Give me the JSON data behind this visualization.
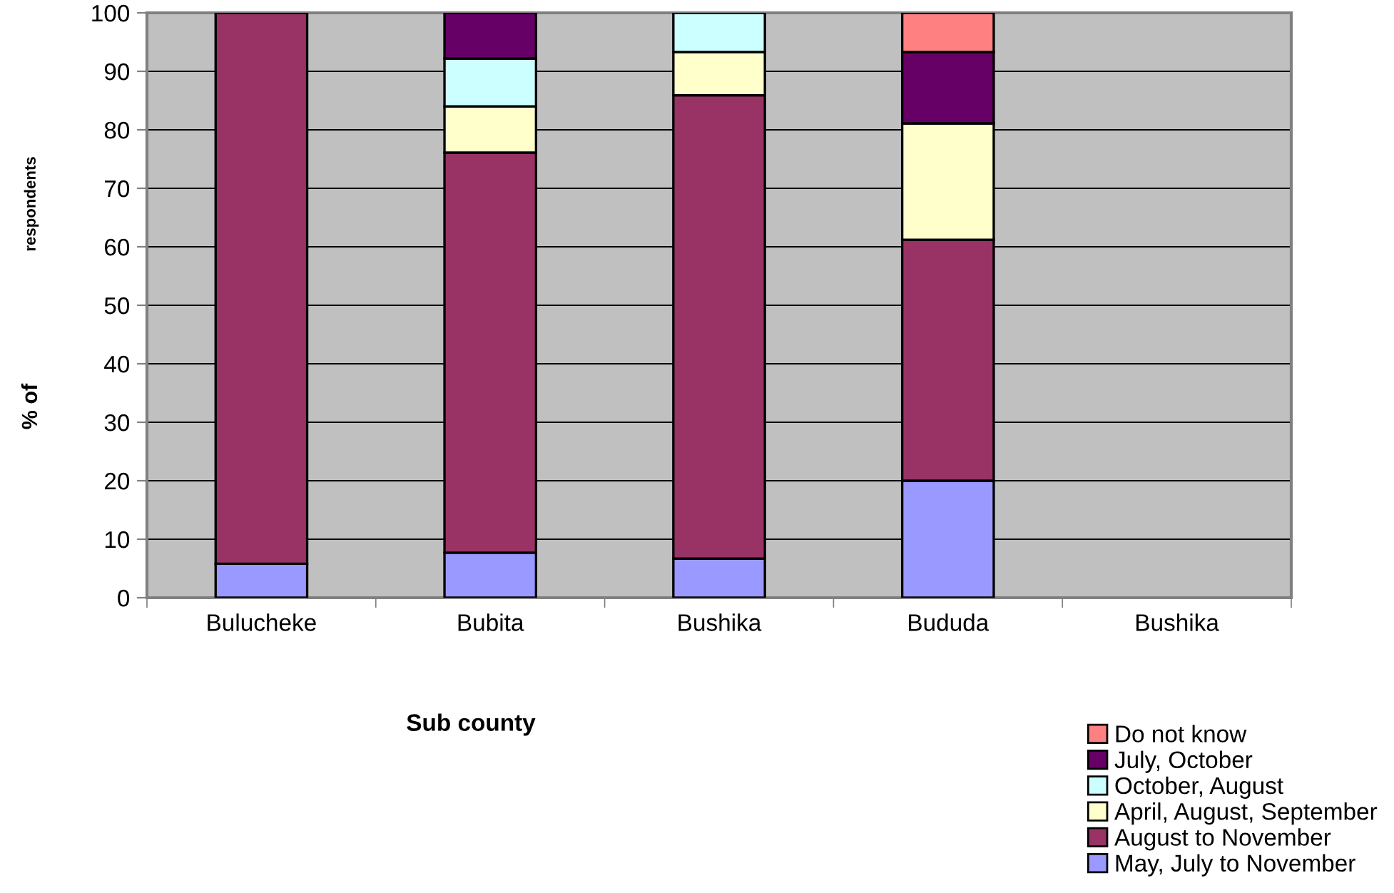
{
  "chart_data": {
    "type": "bar",
    "stacked": true,
    "xlabel": "Sub county",
    "ylabel": "% of",
    "annotations": [
      "respondents"
    ],
    "categories": [
      "Bulucheke",
      "Bubita",
      "Bushika",
      "Bududa",
      "Bushika"
    ],
    "series": [
      {
        "name": "May, July to November",
        "color": "#9999ff",
        "values": [
          5.8,
          7.7,
          6.7,
          20,
          null
        ]
      },
      {
        "name": "August to November",
        "color": "#993366",
        "values": [
          94.2,
          68.4,
          79.2,
          41.2,
          null
        ]
      },
      {
        "name": "April, August, September",
        "color": "#ffffcc",
        "values": [
          null,
          7.9,
          7.4,
          19.9,
          null
        ]
      },
      {
        "name": "October, August",
        "color": "#ccffff",
        "values": [
          null,
          8.2,
          6.7,
          null,
          null
        ]
      },
      {
        "name": "July, October",
        "color": "#660066",
        "values": [
          null,
          7.8,
          null,
          12.2,
          null
        ]
      },
      {
        "name": "Do not know",
        "color": "#ff8080",
        "values": [
          null,
          null,
          null,
          6.7,
          null
        ]
      }
    ],
    "ylim": [
      0,
      100
    ],
    "yticks": [
      0,
      10,
      20,
      30,
      40,
      50,
      60,
      70,
      80,
      90,
      100
    ],
    "grid": "y",
    "legend": "bottom right"
  }
}
